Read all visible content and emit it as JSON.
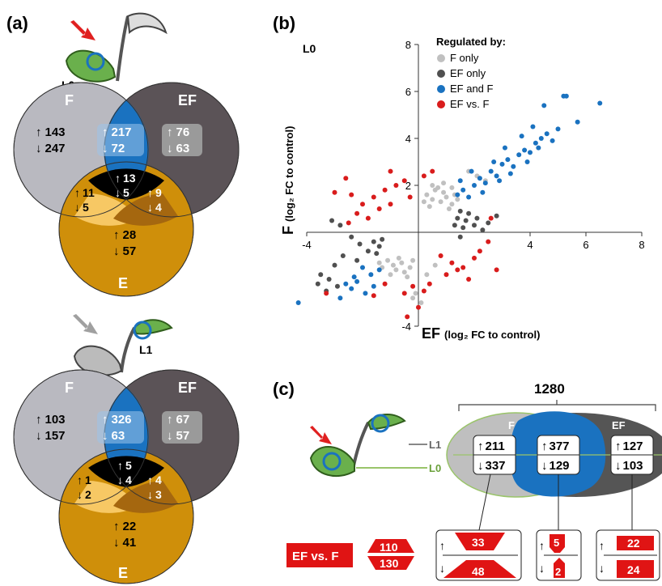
{
  "panel_labels": {
    "a": "(a)",
    "b": "(b)",
    "c": "(c)"
  },
  "colors": {
    "F": "#b9b9c0",
    "EF": "#5b5357",
    "E": "#cf8f0a",
    "FE": "#f7c864",
    "EFE": "#a5670f",
    "overlap_blue": "#1a72c0",
    "center": "#000000",
    "F_only": "#c0c0c0",
    "EF_only": "#505050",
    "EF_and_F": "#1a72c0",
    "EF_vs_F": "#d91c1c"
  },
  "venn_top": {
    "leaf_label": "L0",
    "F": {
      "label": "F",
      "up": "143",
      "down": "247"
    },
    "EF": {
      "label": "EF",
      "up": "76",
      "down": "63"
    },
    "F_EF": {
      "up": "217",
      "down": "72"
    },
    "F_E": {
      "up": "11",
      "down": "5"
    },
    "EF_E": {
      "up": "9",
      "down": "4"
    },
    "center": {
      "up": "13",
      "down": "5"
    },
    "E": {
      "label": "E",
      "up": "28",
      "down": "57"
    }
  },
  "venn_bottom": {
    "leaf_label": "L1",
    "F": {
      "label": "F",
      "up": "103",
      "down": "157"
    },
    "EF": {
      "label": "EF",
      "up": "67",
      "down": "57"
    },
    "F_EF": {
      "up": "326",
      "down": "63"
    },
    "F_E": {
      "up": "1",
      "down": "2"
    },
    "EF_E": {
      "up": "4",
      "down": "3"
    },
    "center": {
      "up": "5",
      "down": "4"
    },
    "E": {
      "label": "E",
      "up": "22",
      "down": "41"
    }
  },
  "chart_data": {
    "type": "scatter",
    "title": "L0",
    "xlabel_main": "EF",
    "xlabel_sub": "(log₂ FC to control)",
    "ylabel_main": "F",
    "ylabel_sub": "(log₂ FC to control)",
    "xlim": [
      -4,
      8
    ],
    "ylim": [
      -4,
      8
    ],
    "x_ticks": [
      -4,
      4,
      6,
      8
    ],
    "y_ticks": [
      -4,
      2,
      4,
      6,
      8
    ],
    "x_tick_labels": [
      "-4",
      "4",
      "6",
      "8"
    ],
    "y_tick_labels": [
      "-4",
      "2",
      "4",
      "6",
      "8"
    ],
    "legend_title": "Regulated by:",
    "legend_position": "top-left",
    "series": [
      {
        "name": "F only",
        "points": [
          [
            0.3,
            1.6
          ],
          [
            0.5,
            1.4
          ],
          [
            0.8,
            1.3
          ],
          [
            1.0,
            1.5
          ],
          [
            1.2,
            1.2
          ],
          [
            0.6,
            1.8
          ],
          [
            0.9,
            1.7
          ],
          [
            1.3,
            1.6
          ],
          [
            0.4,
            1.1
          ],
          [
            1.1,
            1.0
          ],
          [
            0.7,
            1.9
          ],
          [
            1.4,
            1.4
          ],
          [
            0.2,
            1.3
          ],
          [
            0.5,
            2.0
          ],
          [
            0.9,
            2.1
          ],
          [
            1.2,
            1.9
          ],
          [
            -0.3,
            -1.5
          ],
          [
            -0.6,
            -1.3
          ],
          [
            -0.9,
            -1.4
          ],
          [
            -1.1,
            -1.2
          ],
          [
            -0.5,
            -1.7
          ],
          [
            -0.8,
            -1.6
          ],
          [
            -1.3,
            -1.5
          ],
          [
            -0.2,
            -1.2
          ],
          [
            -0.7,
            -1.1
          ],
          [
            -1.0,
            -1.8
          ],
          [
            -0.4,
            -1.9
          ],
          [
            -1.4,
            -1.3
          ],
          [
            0.6,
            -1.4
          ],
          [
            0.3,
            -1.8
          ],
          [
            -0.2,
            -2.8
          ],
          [
            0.1,
            -3.0
          ],
          [
            -0.1,
            -2.6
          ],
          [
            2.1,
            2.4
          ],
          [
            1.8,
            2.6
          ],
          [
            2.4,
            2.2
          ]
        ]
      },
      {
        "name": "EF only",
        "points": [
          [
            1.3,
            0.3
          ],
          [
            1.4,
            0.6
          ],
          [
            1.5,
            0.9
          ],
          [
            1.6,
            0.2
          ],
          [
            1.7,
            0.5
          ],
          [
            1.5,
            -0.2
          ],
          [
            2.0,
            0.3
          ],
          [
            2.1,
            0.6
          ],
          [
            2.5,
            0.4
          ],
          [
            1.8,
            0.8
          ],
          [
            2.3,
            0.1
          ],
          [
            2.8,
            0.7
          ],
          [
            -1.3,
            -0.3
          ],
          [
            -1.4,
            -0.6
          ],
          [
            -1.5,
            -0.9
          ],
          [
            -1.6,
            -0.4
          ],
          [
            -1.8,
            -0.8
          ],
          [
            -2.1,
            -0.5
          ],
          [
            -2.4,
            -0.2
          ],
          [
            -2.7,
            -1.0
          ],
          [
            -3.0,
            -1.4
          ],
          [
            -3.2,
            -2.0
          ],
          [
            -3.5,
            -1.8
          ],
          [
            -2.9,
            -2.3
          ],
          [
            -3.3,
            -2.5
          ],
          [
            -3.6,
            -2.2
          ],
          [
            -2.2,
            -1.2
          ],
          [
            -3.1,
            0.5
          ],
          [
            -2.8,
            0.3
          ]
        ]
      },
      {
        "name": "EF and F",
        "points": [
          [
            1.4,
            1.6
          ],
          [
            1.6,
            1.8
          ],
          [
            1.8,
            1.5
          ],
          [
            2.0,
            2.0
          ],
          [
            2.2,
            2.3
          ],
          [
            2.4,
            2.1
          ],
          [
            2.6,
            2.6
          ],
          [
            2.8,
            2.4
          ],
          [
            3.0,
            2.9
          ],
          [
            3.2,
            3.1
          ],
          [
            3.4,
            2.8
          ],
          [
            3.6,
            3.3
          ],
          [
            3.8,
            3.5
          ],
          [
            4.0,
            3.4
          ],
          [
            4.2,
            3.8
          ],
          [
            4.4,
            4.0
          ],
          [
            4.6,
            4.2
          ],
          [
            4.8,
            3.9
          ],
          [
            5.0,
            4.4
          ],
          [
            5.2,
            5.8
          ],
          [
            5.3,
            5.8
          ],
          [
            6.5,
            5.5
          ],
          [
            4.5,
            5.4
          ],
          [
            3.7,
            4.1
          ],
          [
            3.1,
            3.6
          ],
          [
            2.7,
            3.0
          ],
          [
            1.9,
            2.6
          ],
          [
            1.5,
            2.2
          ],
          [
            4.1,
            4.5
          ],
          [
            3.3,
            2.5
          ],
          [
            2.9,
            2.2
          ],
          [
            2.3,
            1.7
          ],
          [
            5.7,
            4.7
          ],
          [
            4.3,
            3.6
          ],
          [
            3.9,
            3.0
          ],
          [
            -1.4,
            -1.6
          ],
          [
            -1.7,
            -1.8
          ],
          [
            -2.0,
            -1.5
          ],
          [
            -2.2,
            -2.1
          ],
          [
            -2.4,
            -2.4
          ],
          [
            -2.6,
            -2.2
          ],
          [
            -1.9,
            -2.6
          ],
          [
            -2.8,
            -2.8
          ],
          [
            -1.6,
            -2.3
          ],
          [
            -2.3,
            -1.9
          ],
          [
            -4.3,
            -3.0
          ]
        ]
      },
      {
        "name": "EF vs. F",
        "points": [
          [
            -0.8,
            2.0
          ],
          [
            -1.2,
            1.8
          ],
          [
            -1.6,
            1.5
          ],
          [
            -2.0,
            1.2
          ],
          [
            -2.2,
            0.8
          ],
          [
            -2.5,
            0.4
          ],
          [
            -1.0,
            1.2
          ],
          [
            -1.4,
            1.0
          ],
          [
            -1.8,
            0.6
          ],
          [
            -0.5,
            2.2
          ],
          [
            0.2,
            2.4
          ],
          [
            0.5,
            2.6
          ],
          [
            -2.6,
            2.3
          ],
          [
            -3.0,
            1.7
          ],
          [
            -0.3,
            1.5
          ],
          [
            0.8,
            -1.0
          ],
          [
            1.2,
            -1.3
          ],
          [
            1.6,
            -1.5
          ],
          [
            2.0,
            -1.1
          ],
          [
            2.2,
            -0.8
          ],
          [
            2.5,
            -0.4
          ],
          [
            1.0,
            -1.8
          ],
          [
            1.4,
            -1.6
          ],
          [
            0.4,
            -2.2
          ],
          [
            0.2,
            -2.5
          ],
          [
            -0.2,
            -2.3
          ],
          [
            -0.5,
            -2.6
          ],
          [
            -1.6,
            -2.7
          ],
          [
            -3.3,
            -2.6
          ],
          [
            -1.2,
            -2.2
          ],
          [
            2.8,
            -1.6
          ],
          [
            2.6,
            0.6
          ],
          [
            0.0,
            -3.2
          ],
          [
            -0.4,
            -3.6
          ],
          [
            -1.0,
            2.6
          ],
          [
            -2.4,
            1.6
          ],
          [
            1.8,
            -2.0
          ]
        ]
      }
    ]
  },
  "panel_c": {
    "total": "1280",
    "leaf_top_label": "L1",
    "leaf_bottom_label": "L0",
    "ellipse_F_label": "F",
    "ellipse_EF_label": "EF",
    "boxes": [
      {
        "up": "211",
        "down": "337"
      },
      {
        "up": "377",
        "down": "129"
      },
      {
        "up": "127",
        "down": "103"
      }
    ],
    "ef_vs_f_label": "EF vs. F",
    "hex_top": "110",
    "hex_bottom": "130",
    "lower_boxes": [
      {
        "up": "33",
        "down": "48"
      },
      {
        "up": "5",
        "down": "2"
      },
      {
        "up": "22",
        "down": "24"
      }
    ]
  }
}
